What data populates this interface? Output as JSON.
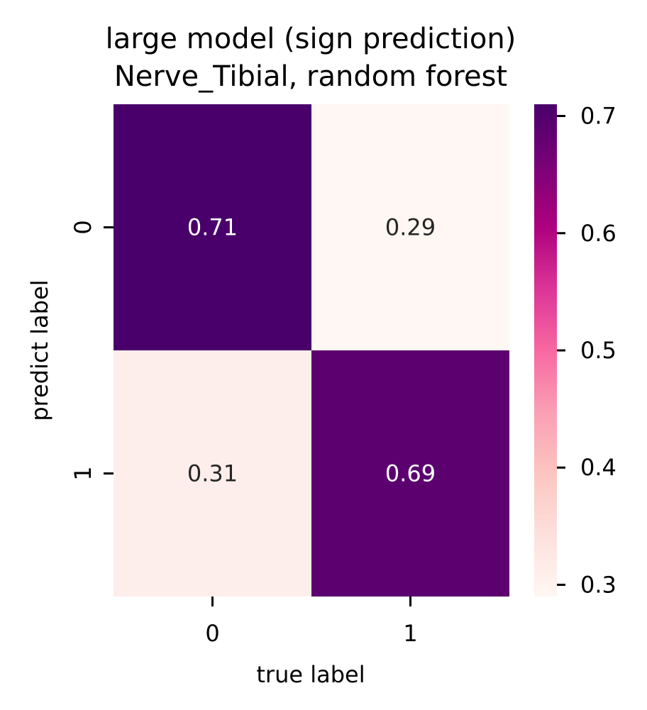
{
  "chart_data": {
    "type": "heatmap",
    "title": [
      "large model (sign prediction)",
      "Nerve_Tibial, random forest"
    ],
    "xlabel": "true label",
    "ylabel": "predict label",
    "x_categories": [
      "0",
      "1"
    ],
    "y_categories": [
      "0",
      "1"
    ],
    "values": [
      [
        0.71,
        0.29
      ],
      [
        0.31,
        0.69
      ]
    ],
    "cell_labels": [
      [
        "0.71",
        "0.29"
      ],
      [
        "0.31",
        "0.69"
      ]
    ],
    "colorbar": {
      "range": [
        0.29,
        0.71
      ],
      "ticks": [
        0.3,
        0.4,
        0.5,
        0.6,
        0.7
      ],
      "tick_labels": [
        "0.3",
        "0.4",
        "0.5",
        "0.6",
        "0.7"
      ],
      "colormap": "RdPu",
      "color_stops": [
        "#fff7f3",
        "#fde0dd",
        "#fcc5c0",
        "#fa9fb5",
        "#f768a1",
        "#dd3497",
        "#ae017e",
        "#7a0177",
        "#49006a"
      ]
    }
  }
}
